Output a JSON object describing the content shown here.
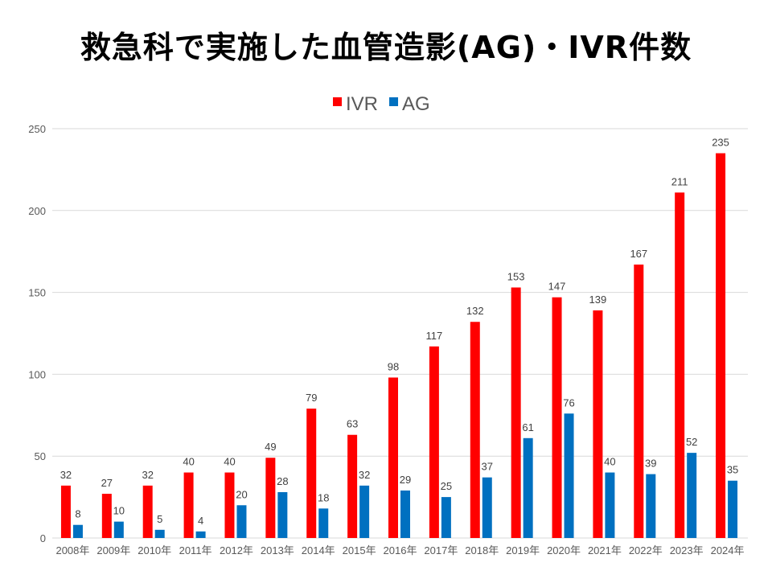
{
  "chart_data": {
    "type": "bar",
    "title": "救急科で実施した血管造影(AG)・IVR件数",
    "categories": [
      "2008年",
      "2009年",
      "2010年",
      "2011年",
      "2012年",
      "2013年",
      "2014年",
      "2015年",
      "2016年",
      "2017年",
      "2018年",
      "2019年",
      "2020年",
      "2021年",
      "2022年",
      "2023年",
      "2024年"
    ],
    "series": [
      {
        "name": "IVR",
        "color": "#ff0000",
        "values": [
          32,
          27,
          32,
          40,
          40,
          49,
          79,
          63,
          98,
          117,
          132,
          153,
          147,
          139,
          167,
          211,
          235
        ]
      },
      {
        "name": "AG",
        "color": "#0070c0",
        "values": [
          8,
          10,
          5,
          4,
          20,
          28,
          18,
          32,
          29,
          25,
          37,
          61,
          76,
          40,
          39,
          52,
          35
        ]
      }
    ],
    "ylim": [
      0,
      250
    ],
    "yticks": [
      0,
      50,
      100,
      150,
      200,
      250
    ],
    "grid": true,
    "legend": "top-center",
    "xlabel": "",
    "ylabel": ""
  }
}
